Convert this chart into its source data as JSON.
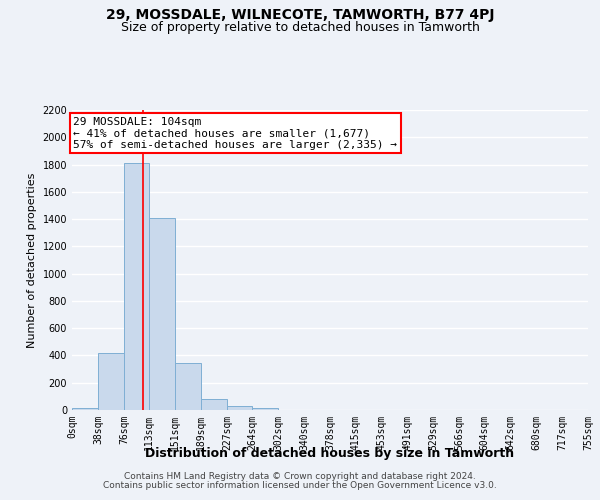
{
  "title": "29, MOSSDALE, WILNECOTE, TAMWORTH, B77 4PJ",
  "subtitle": "Size of property relative to detached houses in Tamworth",
  "xlabel": "Distribution of detached houses by size in Tamworth",
  "ylabel": "Number of detached properties",
  "bin_edges": [
    0,
    38,
    76,
    113,
    151,
    189,
    227,
    264,
    302,
    340,
    378,
    415,
    453,
    491,
    529,
    566,
    604,
    642,
    680,
    717,
    755
  ],
  "bar_heights": [
    15,
    420,
    1810,
    1410,
    345,
    80,
    32,
    18,
    0,
    0,
    0,
    0,
    0,
    0,
    0,
    0,
    0,
    0,
    0,
    0
  ],
  "bar_color": "#c9d9ec",
  "bar_edgecolor": "#7fafd4",
  "property_line_x": 104,
  "property_line_color": "red",
  "annotation_text": "29 MOSSDALE: 104sqm\n← 41% of detached houses are smaller (1,677)\n57% of semi-detached houses are larger (2,335) →",
  "annotation_box_color": "white",
  "annotation_box_edgecolor": "red",
  "ylim": [
    0,
    2200
  ],
  "yticks": [
    0,
    200,
    400,
    600,
    800,
    1000,
    1200,
    1400,
    1600,
    1800,
    2000,
    2200
  ],
  "tick_labels": [
    "0sqm",
    "38sqm",
    "76sqm",
    "113sqm",
    "151sqm",
    "189sqm",
    "227sqm",
    "264sqm",
    "302sqm",
    "340sqm",
    "378sqm",
    "415sqm",
    "453sqm",
    "491sqm",
    "529sqm",
    "566sqm",
    "604sqm",
    "642sqm",
    "680sqm",
    "717sqm",
    "755sqm"
  ],
  "footer_line1": "Contains HM Land Registry data © Crown copyright and database right 2024.",
  "footer_line2": "Contains public sector information licensed under the Open Government Licence v3.0.",
  "background_color": "#eef2f8",
  "grid_color": "white",
  "title_fontsize": 10,
  "subtitle_fontsize": 9,
  "xlabel_fontsize": 9,
  "ylabel_fontsize": 8,
  "tick_fontsize": 7,
  "annotation_fontsize": 8,
  "footer_fontsize": 6.5
}
